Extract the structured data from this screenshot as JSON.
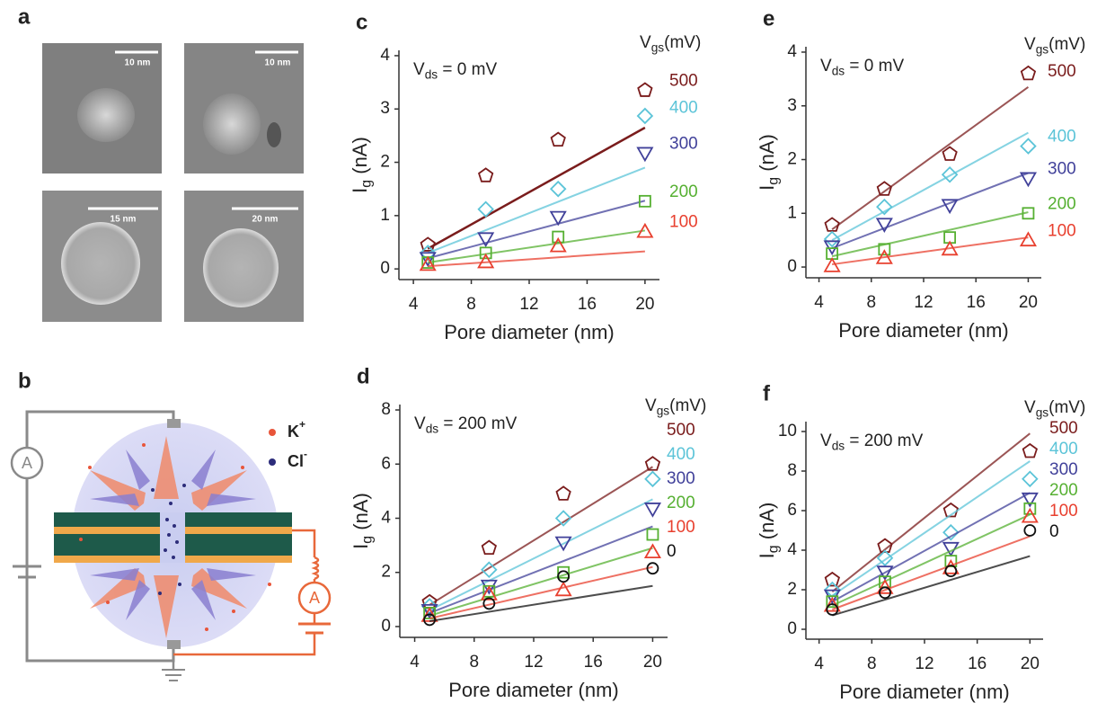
{
  "figure_a": {
    "label": "a",
    "scale_bars": [
      "10 nm",
      "10 nm",
      "15 nm",
      "20 nm"
    ]
  },
  "figure_b": {
    "label": "b",
    "legend": [
      [
        "K",
        "+"
      ],
      [
        "Cl",
        "-"
      ]
    ],
    "ammeters": [
      "A",
      "A"
    ]
  },
  "chart_data": [
    {
      "type": "scatter",
      "panel_label": "c",
      "annotation": [
        "V",
        "ds",
        " = 0 mV"
      ],
      "legend_title": [
        "V",
        "gs",
        "(mV)"
      ],
      "x_label": "Pore diameter (nm)",
      "y_label": [
        "I",
        "g",
        " (nA)"
      ],
      "x": [
        5,
        9,
        14,
        20
      ],
      "fit_x": [
        5,
        20
      ],
      "xlim": [
        3,
        21
      ],
      "xticks": [
        4,
        8,
        12,
        16,
        20
      ],
      "ylim": [
        -0.2,
        4.1
      ],
      "yticks": [
        0,
        1,
        2,
        3,
        4
      ],
      "series": [
        {
          "name": "500",
          "color": "#7a1c1c",
          "marker": "pentagon",
          "values": [
            0.45,
            1.75,
            2.42,
            3.35
          ],
          "fit": [
            0.38,
            2.65
          ]
        },
        {
          "name": "400",
          "color": "#5cc4d8",
          "marker": "diamond",
          "values": [
            0.3,
            1.12,
            1.5,
            2.87
          ],
          "fit": [
            0.3,
            1.9
          ]
        },
        {
          "name": "300",
          "color": "#41419a",
          "marker": "triangle-down",
          "values": [
            0.2,
            0.57,
            0.97,
            2.17
          ],
          "fit": [
            0.2,
            1.28
          ]
        },
        {
          "name": "200",
          "color": "#56b032",
          "marker": "square",
          "values": [
            0.12,
            0.3,
            0.6,
            1.27
          ],
          "fit": [
            0.12,
            0.72
          ]
        },
        {
          "name": "100",
          "color": "#e8402f",
          "marker": "triangle-up",
          "values": [
            0.08,
            0.13,
            0.43,
            0.7
          ],
          "fit": [
            0.05,
            0.33
          ]
        }
      ]
    },
    {
      "type": "scatter",
      "panel_label": "d",
      "annotation": [
        "V",
        "ds",
        " = 200 mV"
      ],
      "legend_title": [
        "V",
        "gs",
        "(mV)"
      ],
      "x_label": "Pore diameter (nm)",
      "y_label": [
        "I",
        "g",
        " (nA)"
      ],
      "x": [
        5,
        9,
        14,
        20
      ],
      "fit_x": [
        5,
        20
      ],
      "xlim": [
        3,
        21
      ],
      "xticks": [
        4,
        8,
        12,
        16,
        20
      ],
      "ylim": [
        -0.4,
        8.2
      ],
      "yticks": [
        0,
        2,
        4,
        6,
        8
      ],
      "series": [
        {
          "name": "500",
          "color": "#7a1c1c",
          "marker": "pentagon",
          "values": [
            0.9,
            2.9,
            4.9,
            6.0
          ],
          "fit": [
            0.8,
            5.9
          ]
        },
        {
          "name": "400",
          "color": "#5cc4d8",
          "marker": "diamond",
          "values": [
            0.75,
            2.1,
            4.0,
            5.45
          ],
          "fit": [
            0.6,
            4.7
          ]
        },
        {
          "name": "300",
          "color": "#41419a",
          "marker": "triangle-down",
          "values": [
            0.6,
            1.5,
            3.1,
            4.35
          ],
          "fit": [
            0.5,
            3.7
          ]
        },
        {
          "name": "200",
          "color": "#56b032",
          "marker": "square",
          "values": [
            0.5,
            1.3,
            2.0,
            3.4
          ],
          "fit": [
            0.4,
            2.9
          ]
        },
        {
          "name": "100",
          "color": "#e8402f",
          "marker": "triangle-up",
          "values": [
            0.4,
            1.2,
            1.35,
            2.75
          ],
          "fit": [
            0.3,
            2.2
          ]
        },
        {
          "name": "0",
          "color": "#111111",
          "marker": "circle",
          "values": [
            0.25,
            0.85,
            1.85,
            2.15
          ],
          "fit": [
            0.2,
            1.5
          ]
        }
      ]
    },
    {
      "type": "scatter",
      "panel_label": "e",
      "annotation": [
        "V",
        "ds",
        " = 0 mV"
      ],
      "legend_title": [
        "V",
        "gs",
        "(mV)"
      ],
      "x_label": "Pore diameter (nm)",
      "y_label": [
        "I",
        "g",
        " (nA)"
      ],
      "x": [
        5,
        9,
        14,
        20
      ],
      "fit_x": [
        5,
        20
      ],
      "xlim": [
        3,
        21
      ],
      "xticks": [
        4,
        8,
        12,
        16,
        20
      ],
      "ylim": [
        -0.2,
        4.1
      ],
      "yticks": [
        0,
        1,
        2,
        3,
        4
      ],
      "series": [
        {
          "name": "500",
          "color": "#7a1c1c",
          "marker": "pentagon",
          "values": [
            0.78,
            1.45,
            2.1,
            3.6
          ],
          "fit": [
            0.7,
            3.35
          ]
        },
        {
          "name": "400",
          "color": "#5cc4d8",
          "marker": "diamond",
          "values": [
            0.52,
            1.12,
            1.72,
            2.25
          ],
          "fit": [
            0.5,
            2.5
          ]
        },
        {
          "name": "300",
          "color": "#41419a",
          "marker": "triangle-down",
          "values": [
            0.38,
            0.8,
            1.15,
            1.65
          ],
          "fit": [
            0.35,
            1.75
          ]
        },
        {
          "name": "200",
          "color": "#56b032",
          "marker": "square",
          "values": [
            0.25,
            0.33,
            0.55,
            1.0
          ],
          "fit": [
            0.2,
            1.02
          ]
        },
        {
          "name": "100",
          "color": "#e8402f",
          "marker": "triangle-up",
          "values": [
            0.02,
            0.17,
            0.33,
            0.5
          ],
          "fit": [
            0.05,
            0.55
          ]
        }
      ]
    },
    {
      "type": "scatter",
      "panel_label": "f",
      "annotation": [
        "V",
        "ds",
        " = 200 mV"
      ],
      "legend_title": [
        "V",
        "gs",
        "(mV)"
      ],
      "x_label": "Pore diameter (nm)",
      "y_label": [
        "I",
        "g",
        " (nA)"
      ],
      "x": [
        5,
        9,
        14,
        20
      ],
      "fit_x": [
        5,
        20
      ],
      "xlim": [
        3,
        21
      ],
      "xticks": [
        4,
        8,
        12,
        16,
        20
      ],
      "ylim": [
        -0.5,
        10.5
      ],
      "yticks": [
        0,
        2,
        4,
        6,
        8,
        10
      ],
      "series": [
        {
          "name": "500",
          "color": "#7a1c1c",
          "marker": "pentagon",
          "values": [
            2.5,
            4.2,
            6.0,
            9.0
          ],
          "fit": [
            1.9,
            9.9
          ]
        },
        {
          "name": "400",
          "color": "#5cc4d8",
          "marker": "diamond",
          "values": [
            2.0,
            3.6,
            4.9,
            7.6
          ],
          "fit": [
            1.7,
            8.5
          ]
        },
        {
          "name": "300",
          "color": "#41419a",
          "marker": "triangle-down",
          "values": [
            1.7,
            2.9,
            4.1,
            6.6
          ],
          "fit": [
            1.4,
            6.9
          ]
        },
        {
          "name": "200",
          "color": "#56b032",
          "marker": "square",
          "values": [
            1.4,
            2.4,
            3.45,
            6.1
          ],
          "fit": [
            1.2,
            5.8
          ]
        },
        {
          "name": "100",
          "color": "#e8402f",
          "marker": "triangle-up",
          "values": [
            1.2,
            2.1,
            3.1,
            5.7
          ],
          "fit": [
            1.0,
            4.7
          ]
        },
        {
          "name": "0",
          "color": "#111111",
          "marker": "circle",
          "values": [
            1.0,
            1.85,
            2.95,
            5.0
          ],
          "fit": [
            0.7,
            3.7
          ]
        }
      ]
    }
  ]
}
